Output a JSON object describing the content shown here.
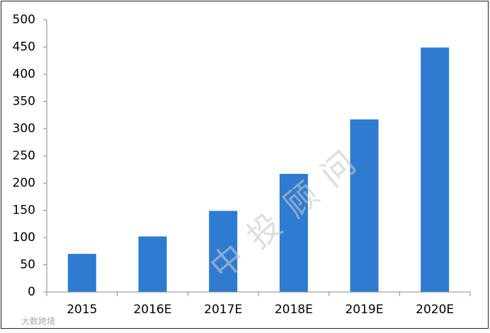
{
  "chart_data": {
    "type": "bar",
    "categories": [
      "2015",
      "2016E",
      "2017E",
      "2018E",
      "2019E",
      "2020E"
    ],
    "values": [
      70,
      102,
      149,
      217,
      317,
      449
    ],
    "color": "#2e7bd1",
    "ylim": [
      0,
      500
    ],
    "yticks": [
      0,
      50,
      100,
      150,
      200,
      250,
      300,
      350,
      400,
      450,
      500
    ],
    "grid": false,
    "watermark": "中投顾问",
    "source_logo": "大数跨境"
  }
}
